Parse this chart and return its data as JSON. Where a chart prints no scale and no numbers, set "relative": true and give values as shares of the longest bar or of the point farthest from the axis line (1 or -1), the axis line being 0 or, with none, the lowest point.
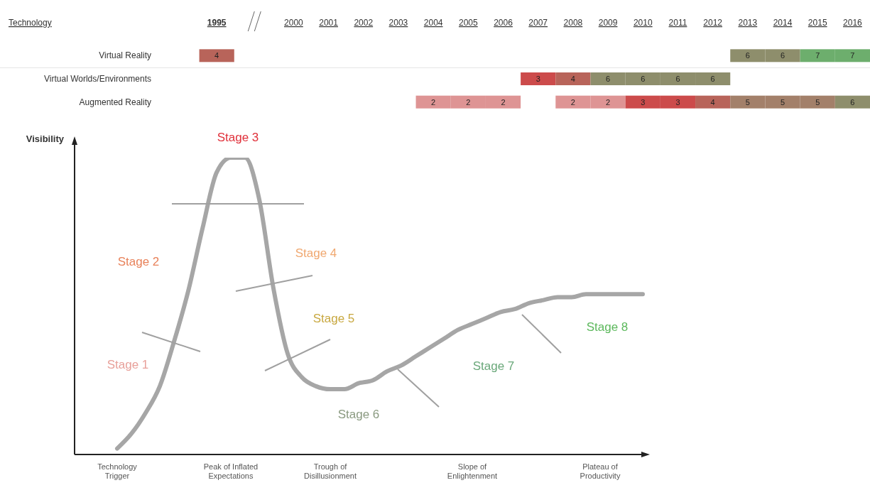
{
  "chart_data": [
    {
      "type": "heatmap",
      "ylabel": "Technology",
      "categories": [
        "1995",
        "2000",
        "2001",
        "2002",
        "2003",
        "2004",
        "2005",
        "2006",
        "2007",
        "2008",
        "2009",
        "2010",
        "2011",
        "2012",
        "2013",
        "2014",
        "2015",
        "2016"
      ],
      "y_categories": [
        "Virtual Reality",
        "Virtual Worlds/Environments",
        "Augmented Reality"
      ],
      "cells": [
        [
          4,
          null,
          null,
          null,
          null,
          null,
          null,
          null,
          null,
          null,
          null,
          null,
          null,
          null,
          6,
          6,
          7,
          7
        ],
        [
          null,
          null,
          null,
          null,
          null,
          null,
          null,
          null,
          3,
          4,
          6,
          6,
          6,
          6,
          null,
          null,
          null,
          null
        ],
        [
          null,
          null,
          null,
          null,
          null,
          2,
          2,
          2,
          null,
          2,
          2,
          3,
          3,
          4,
          5,
          5,
          5,
          6
        ]
      ],
      "data_labels": true
    },
    {
      "type": "line",
      "relative": true,
      "ylabel": "Visibility",
      "categories": [
        null,
        null,
        null,
        "Technology\nTrigger",
        null,
        null,
        null,
        null,
        null,
        null,
        null,
        "Peak of Inflated\nExpectations",
        null,
        null,
        null,
        null,
        null,
        null,
        "Trough of\nDisillusionment",
        null,
        null,
        null,
        null,
        null,
        null,
        null,
        null,
        null,
        "Slope of\nEnlightenment",
        null,
        null,
        null,
        null,
        null,
        null,
        null,
        null,
        "Plateau of\nProductivity",
        null,
        null,
        null
      ],
      "series": [
        {
          "color": "#a6a6a6",
          "values": [
            null,
            null,
            null,
            0.02,
            0.07,
            0.14,
            0.23,
            0.38,
            0.55,
            0.76,
            0.95,
            1.0,
            1.0,
            0.86,
            0.56,
            0.34,
            0.26,
            0.23,
            0.22,
            0.22,
            0.24,
            0.25,
            0.28,
            0.3,
            0.33,
            0.36,
            0.39,
            0.42,
            0.44,
            0.46,
            0.48,
            0.49,
            0.51,
            0.52,
            0.53,
            0.53,
            0.54,
            0.54,
            0.54,
            0.54,
            0.54
          ]
        }
      ],
      "annotations": [
        "Stage 1",
        "Stage 2",
        "Stage 3",
        "Stage 4",
        "Stage 5",
        "Stage 6",
        "Stage 7",
        "Stage 8"
      ]
    }
  ]
}
